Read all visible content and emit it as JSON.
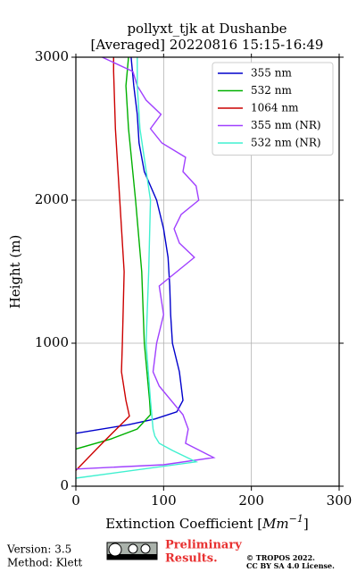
{
  "chart_data": {
    "type": "profile",
    "title": [
      "pollyxt_tjk at Dushanbe",
      "[Averaged] 20220816 15:15-16:49"
    ],
    "xlabel": {
      "text": "Extinction Coefficient [",
      "unit": "Mm",
      "exponent": "−1",
      "close": "]"
    },
    "ylabel": "Height (m)",
    "xlim": [
      0,
      300
    ],
    "xticks": [
      0,
      100,
      200,
      300
    ],
    "ylim": [
      0,
      3000
    ],
    "yticks": [
      0,
      1000,
      2000,
      3000
    ],
    "grid": true,
    "legend": "upper right",
    "series": [
      {
        "name": "355 nm",
        "color": "#0000cc",
        "x": [
          0,
          60,
          90,
          115,
          122,
          118,
          110,
          108,
          107,
          105,
          100,
          92,
          85,
          78,
          72,
          70,
          66,
          63
        ],
        "y": [
          370,
          430,
          470,
          520,
          600,
          800,
          1000,
          1200,
          1400,
          1600,
          1800,
          2000,
          2100,
          2200,
          2400,
          2600,
          2800,
          3000
        ]
      },
      {
        "name": "532 nm",
        "color": "#00b000",
        "x": [
          0,
          40,
          70,
          85,
          84,
          78,
          75,
          68,
          60,
          57,
          60
        ],
        "y": [
          260,
          330,
          400,
          500,
          600,
          1000,
          1500,
          2000,
          2500,
          2800,
          3000
        ]
      },
      {
        "name": "1064 nm",
        "color": "#cc0000",
        "x": [
          0,
          30,
          61,
          57,
          52,
          53,
          55,
          50,
          45,
          43,
          43
        ],
        "y": [
          110,
          300,
          490,
          600,
          800,
          1000,
          1500,
          2000,
          2500,
          2900,
          3000
        ]
      },
      {
        "name": "355 nm (NR)",
        "color": "#a040ff",
        "x": [
          0,
          100,
          157,
          125,
          128,
          122,
          95,
          88,
          92,
          100,
          95,
          135,
          118,
          112,
          120,
          140,
          137,
          122,
          125,
          98,
          85,
          97,
          80,
          70,
          65,
          30
        ],
        "y": [
          120,
          150,
          200,
          300,
          400,
          500,
          700,
          800,
          1000,
          1200,
          1400,
          1600,
          1700,
          1800,
          1900,
          2000,
          2100,
          2200,
          2300,
          2400,
          2500,
          2600,
          2700,
          2800,
          2900,
          3000
        ]
      },
      {
        "name": "532 nm (NR)",
        "color": "#40f0d0",
        "x": [
          0,
          137,
          110,
          95,
          90,
          88,
          85,
          80,
          83,
          85,
          73,
          70,
          70
        ],
        "y": [
          56,
          170,
          250,
          300,
          350,
          400,
          600,
          1000,
          1500,
          2000,
          2500,
          2800,
          3000
        ]
      }
    ]
  },
  "footer": {
    "version": "Version: 3.5",
    "method": "Method: Klett",
    "preliminary": [
      "Preliminary",
      "Results."
    ],
    "license": [
      "© TROPOS 2022.",
      "CC BY SA 4.0 License."
    ]
  }
}
